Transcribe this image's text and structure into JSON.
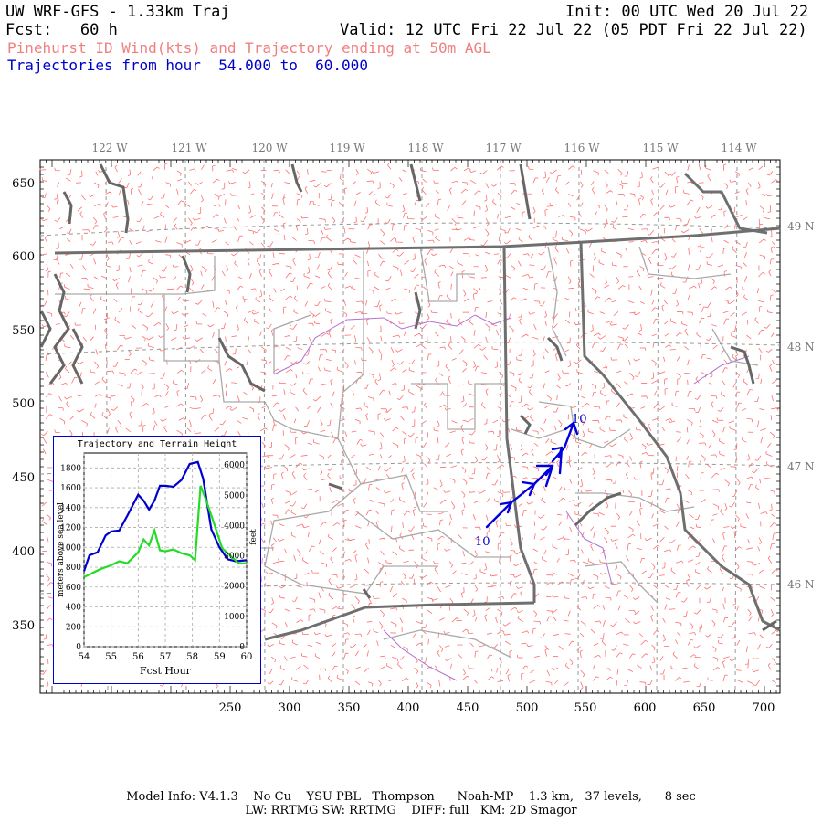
{
  "header": {
    "title": "UW WRF-GFS - 1.33km Traj",
    "init": "Init: 00 UTC Wed 20 Jul 22",
    "fcst": "Fcst:   60 h",
    "valid": "Valid: 12 UTC Fri 22 Jul 22 (05 PDT Fri 22 Jul 22)",
    "subtitle1": "Pinehurst ID Wind(kts) and Trajectory ending at 50m AGL",
    "subtitle2": "Trajectories from hour  54.000 to  60.000"
  },
  "map": {
    "lon_labels": [
      "122 W",
      "121 W",
      "120 W",
      "119 W",
      "118 W",
      "117 W",
      "116 W",
      "115 W",
      "114 W"
    ],
    "lat_labels": [
      "49 N",
      "48 N",
      "47 N",
      "46 N"
    ],
    "x_ticks": [
      "250",
      "300",
      "350",
      "400",
      "450",
      "500",
      "550",
      "600",
      "650",
      "700"
    ],
    "y_ticks": [
      "650",
      "600",
      "550",
      "500",
      "450",
      "400",
      "350"
    ],
    "trajectory_start_label": "10",
    "trajectory_end_label": "10",
    "colors": {
      "wind_barbs": "#ff6666",
      "borders": "#777777",
      "trajectory": "#0000dd",
      "county": "#aaaaaa",
      "rivers": "#aa66cc"
    }
  },
  "inset": {
    "title": "Trajectory and Terrain Height",
    "ylabel_left": "meters above sea level",
    "ylabel_right": "feet",
    "xlabel": "Fcst Hour",
    "x_ticks": [
      "54",
      "55",
      "56",
      "57",
      "58",
      "59",
      "60"
    ],
    "y_left_ticks": [
      "0",
      "200",
      "400",
      "600",
      "800",
      "1000",
      "1200",
      "1400",
      "1600",
      "1800"
    ],
    "y_right_ticks": [
      "0",
      "1000",
      "2000",
      "3000",
      "4000",
      "5000",
      "6000"
    ]
  },
  "chart_data": {
    "type": "line",
    "xlabel": "Fcst Hour",
    "ylabel": "meters above sea level",
    "xlim": [
      54,
      60
    ],
    "ylim": [
      0,
      1950
    ],
    "series": [
      {
        "color": "#0000cc",
        "x": [
          54.0,
          54.2,
          54.5,
          54.8,
          55.0,
          55.3,
          55.6,
          56.0,
          56.2,
          56.4,
          56.6,
          56.8,
          57.0,
          57.3,
          57.6,
          57.9,
          58.2,
          58.4,
          58.7,
          59.0,
          59.3,
          59.6,
          60.0
        ],
        "y": [
          760,
          920,
          950,
          1120,
          1160,
          1170,
          1320,
          1530,
          1470,
          1380,
          1470,
          1620,
          1620,
          1610,
          1680,
          1840,
          1860,
          1690,
          1180,
          1000,
          880,
          860,
          870
        ]
      },
      {
        "color": "#22dd22",
        "x": [
          54.0,
          54.3,
          54.6,
          55.0,
          55.3,
          55.6,
          56.0,
          56.2,
          56.4,
          56.6,
          56.8,
          57.0,
          57.3,
          57.6,
          57.9,
          58.1,
          58.3,
          58.5,
          58.8,
          59.1,
          59.4,
          59.7,
          60.0
        ],
        "y": [
          700,
          740,
          780,
          820,
          860,
          840,
          950,
          1080,
          1020,
          1170,
          970,
          960,
          980,
          940,
          920,
          870,
          1620,
          1480,
          1240,
          990,
          920,
          840,
          840
        ]
      }
    ]
  }
}
